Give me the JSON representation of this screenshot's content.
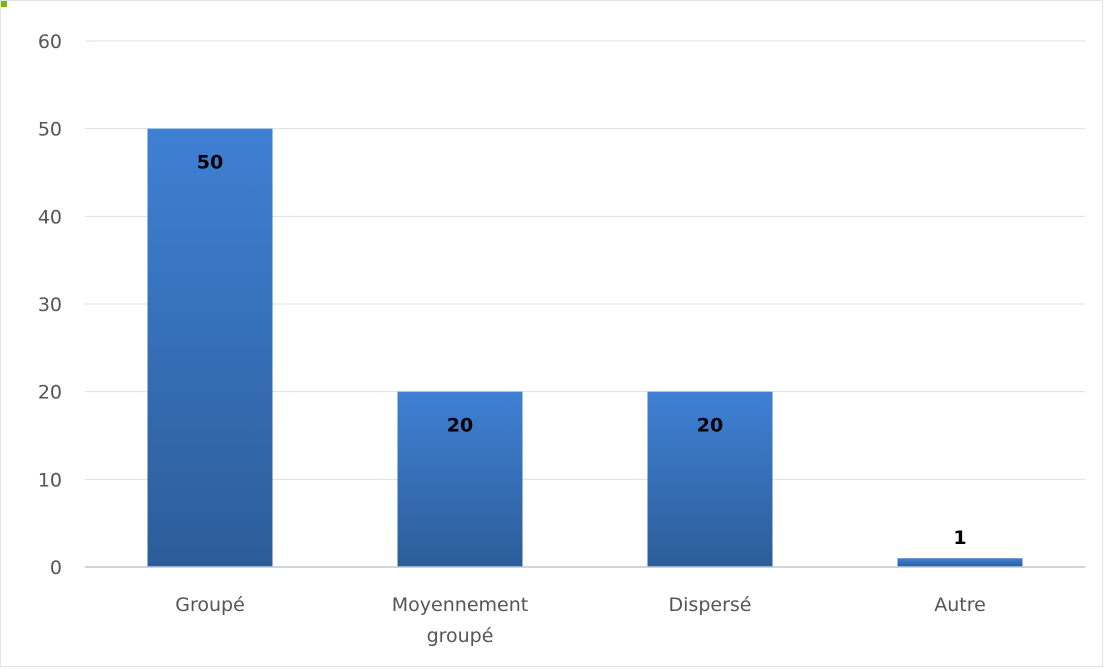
{
  "chart_data": {
    "type": "bar",
    "categories": [
      [
        "Groupé"
      ],
      [
        "Moyennement",
        "groupé"
      ],
      [
        "Dispersé"
      ],
      [
        "Autre"
      ]
    ],
    "values": [
      50,
      20,
      20,
      1
    ],
    "data_labels": [
      "50",
      "20",
      "20",
      "1"
    ],
    "y_ticks": [
      "0",
      "10",
      "20",
      "30",
      "40",
      "50",
      "60"
    ],
    "ylim": [
      0,
      60
    ],
    "grid": true,
    "legend": "none",
    "colors": {
      "bar_top": "#3f80d4",
      "bar_bottom": "#2c5d99",
      "grid": "#d9e1ea",
      "axis": "#bfc7d2"
    }
  }
}
